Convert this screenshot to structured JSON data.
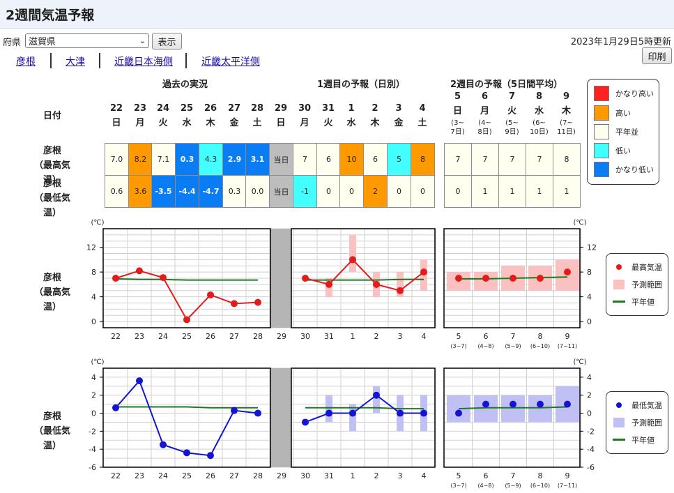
{
  "page": {
    "title": "2週間気温予報",
    "pref_label": "府県",
    "pref_selected": "滋賀県",
    "show_button": "表示",
    "updated": "2023年1月29日5時更新",
    "print_button": "印刷",
    "nav_links": [
      "彦根",
      "大津",
      "近畿日本海側",
      "近畿太平洋側"
    ]
  },
  "table": {
    "section_titles": [
      "過去の実況",
      "1週目の予報（日別）",
      "2週目の予報（5日間平均）"
    ],
    "date_label": "日付",
    "days": [
      {
        "num": "22",
        "dow": "日"
      },
      {
        "num": "23",
        "dow": "月"
      },
      {
        "num": "24",
        "dow": "火"
      },
      {
        "num": "25",
        "dow": "水"
      },
      {
        "num": "26",
        "dow": "木"
      },
      {
        "num": "27",
        "dow": "金"
      },
      {
        "num": "28",
        "dow": "土"
      },
      {
        "num": "29",
        "dow": "日"
      },
      {
        "num": "30",
        "dow": "月"
      },
      {
        "num": "31",
        "dow": "火"
      },
      {
        "num": "1",
        "dow": "水"
      },
      {
        "num": "2",
        "dow": "木"
      },
      {
        "num": "3",
        "dow": "金"
      },
      {
        "num": "4",
        "dow": "土"
      }
    ],
    "week2_days": [
      {
        "num": "5",
        "dow": "日",
        "r1": "(3~",
        "r2": "7日)"
      },
      {
        "num": "6",
        "dow": "月",
        "r1": "(4~",
        "r2": "8日)"
      },
      {
        "num": "7",
        "dow": "火",
        "r1": "(5~",
        "r2": "9日)"
      },
      {
        "num": "8",
        "dow": "水",
        "r1": "(6~",
        "r2": "10日)"
      },
      {
        "num": "9",
        "dow": "木",
        "r1": "(7~",
        "r2": "11日)"
      }
    ],
    "rows": [
      {
        "label1": "彦根",
        "label2": "（最高気温）",
        "daily": [
          {
            "v": "7.0",
            "c": "normal"
          },
          {
            "v": "8.2",
            "c": "high"
          },
          {
            "v": "7.1",
            "c": "normal"
          },
          {
            "v": "0.3",
            "c": "very_low"
          },
          {
            "v": "4.3",
            "c": "low"
          },
          {
            "v": "2.9",
            "c": "very_low"
          },
          {
            "v": "3.1",
            "c": "very_low"
          },
          {
            "v": "当日",
            "c": "today"
          },
          {
            "v": "7",
            "c": "normal"
          },
          {
            "v": "6",
            "c": "normal"
          },
          {
            "v": "10",
            "c": "high"
          },
          {
            "v": "6",
            "c": "normal"
          },
          {
            "v": "5",
            "c": "low"
          },
          {
            "v": "8",
            "c": "high"
          }
        ],
        "week2": [
          "7",
          "7",
          "7",
          "7",
          "8"
        ]
      },
      {
        "label1": "彦根",
        "label2": "（最低気温）",
        "daily": [
          {
            "v": "0.6",
            "c": "normal"
          },
          {
            "v": "3.6",
            "c": "high"
          },
          {
            "v": "-3.5",
            "c": "very_low"
          },
          {
            "v": "-4.4",
            "c": "very_low"
          },
          {
            "v": "-4.7",
            "c": "very_low"
          },
          {
            "v": "0.3",
            "c": "normal"
          },
          {
            "v": "0.0",
            "c": "normal"
          },
          {
            "v": "当日",
            "c": "today"
          },
          {
            "v": "-1",
            "c": "low"
          },
          {
            "v": "0",
            "c": "normal"
          },
          {
            "v": "0",
            "c": "normal"
          },
          {
            "v": "2",
            "c": "high"
          },
          {
            "v": "0",
            "c": "normal"
          },
          {
            "v": "0",
            "c": "normal"
          }
        ],
        "week2": [
          "0",
          "1",
          "1",
          "1",
          "1"
        ]
      }
    ]
  },
  "class_legend": [
    {
      "key": "very_high",
      "label": "かなり高い",
      "color": "#ff2020"
    },
    {
      "key": "high",
      "label": "高い",
      "color": "#ff9900"
    },
    {
      "key": "normal",
      "label": "平年並",
      "color": "#fffff0"
    },
    {
      "key": "low",
      "label": "低い",
      "color": "#44ffff"
    },
    {
      "key": "very_low",
      "label": "かなり低い",
      "color": "#0a7df5"
    }
  ],
  "colors": {
    "today": "#bdbdbd",
    "max_line": "#e31b1b",
    "max_range": "#fbc0c0",
    "min_line": "#1414d2",
    "min_range": "#c0c0f5",
    "normal_line": "#1e7a1e"
  },
  "chart_data": [
    {
      "type": "line",
      "title": "",
      "row_label": [
        "彦根",
        "（最高気温）"
      ],
      "unit": "(℃)",
      "ylim": [
        -1,
        15
      ],
      "yticks": [
        0,
        4,
        8,
        12
      ],
      "grid": true,
      "x": [
        "22",
        "23",
        "24",
        "25",
        "26",
        "27",
        "28",
        "29",
        "30",
        "31",
        "1",
        "2",
        "3",
        "4"
      ],
      "x_week2": [
        "5",
        "6",
        "7",
        "8",
        "9"
      ],
      "x_week2_sub": [
        "(3~7)",
        "(4~8)",
        "(5~9)",
        "(6~10)",
        "(7~11)"
      ],
      "series": [
        {
          "name": "最高気温",
          "observed": [
            7.0,
            8.2,
            7.1,
            0.3,
            4.3,
            2.9,
            3.1
          ],
          "forecast": [
            7,
            6,
            10,
            6,
            5,
            8
          ],
          "week2": [
            7,
            7,
            7,
            7,
            8
          ]
        },
        {
          "name": "予測範囲",
          "forecast_range": [
            [
              7,
              7
            ],
            [
              4,
              7
            ],
            [
              8,
              14
            ],
            [
              4,
              8
            ],
            [
              4,
              8
            ],
            [
              5,
              10
            ]
          ],
          "week2_range": [
            [
              5,
              8
            ],
            [
              5,
              8
            ],
            [
              5,
              9
            ],
            [
              5,
              9
            ],
            [
              5,
              10
            ]
          ]
        },
        {
          "name": "平年値",
          "observed": [
            6.9,
            6.8,
            6.8,
            6.7,
            6.7,
            6.7,
            6.7
          ],
          "forecast": [
            6.7,
            6.7,
            6.7,
            6.7,
            6.8,
            6.8
          ],
          "week2": [
            6.9,
            6.9,
            7.0,
            7.1,
            7.2
          ]
        }
      ],
      "legend": [
        "最高気温",
        "予測範囲",
        "平年値"
      ]
    },
    {
      "type": "line",
      "title": "",
      "row_label": [
        "彦根",
        "（最低気温）"
      ],
      "unit": "(℃)",
      "ylim": [
        -6,
        5
      ],
      "yticks": [
        -6,
        -4,
        -2,
        0,
        2,
        4
      ],
      "grid": true,
      "x": [
        "22",
        "23",
        "24",
        "25",
        "26",
        "27",
        "28",
        "29",
        "30",
        "31",
        "1",
        "2",
        "3",
        "4"
      ],
      "x_week2": [
        "5",
        "6",
        "7",
        "8",
        "9"
      ],
      "x_week2_sub": [
        "(3~7)",
        "(4~8)",
        "(5~9)",
        "(6~10)",
        "(7~11)"
      ],
      "series": [
        {
          "name": "最低気温",
          "observed": [
            0.6,
            3.6,
            -3.5,
            -4.4,
            -4.7,
            0.3,
            0.0
          ],
          "forecast": [
            -1,
            0,
            0,
            2,
            0,
            0
          ],
          "week2": [
            0,
            1,
            1,
            1,
            1
          ]
        },
        {
          "name": "予測範囲",
          "forecast_range": [
            [
              -1,
              -1
            ],
            [
              -1,
              2
            ],
            [
              -2,
              1
            ],
            [
              0,
              3
            ],
            [
              -2,
              2
            ],
            [
              -2,
              2
            ]
          ],
          "week2_range": [
            [
              -1,
              2
            ],
            [
              -1,
              2
            ],
            [
              -1,
              2
            ],
            [
              -1,
              2
            ],
            [
              -1,
              3
            ]
          ]
        },
        {
          "name": "平年値",
          "observed": [
            0.7,
            0.7,
            0.7,
            0.7,
            0.6,
            0.6,
            0.6
          ],
          "forecast": [
            0.6,
            0.6,
            0.6,
            0.6,
            0.5,
            0.5
          ],
          "week2": [
            0.5,
            0.6,
            0.6,
            0.6,
            0.7
          ]
        }
      ],
      "legend": [
        "最低気温",
        "予測範囲",
        "平年値"
      ]
    }
  ]
}
